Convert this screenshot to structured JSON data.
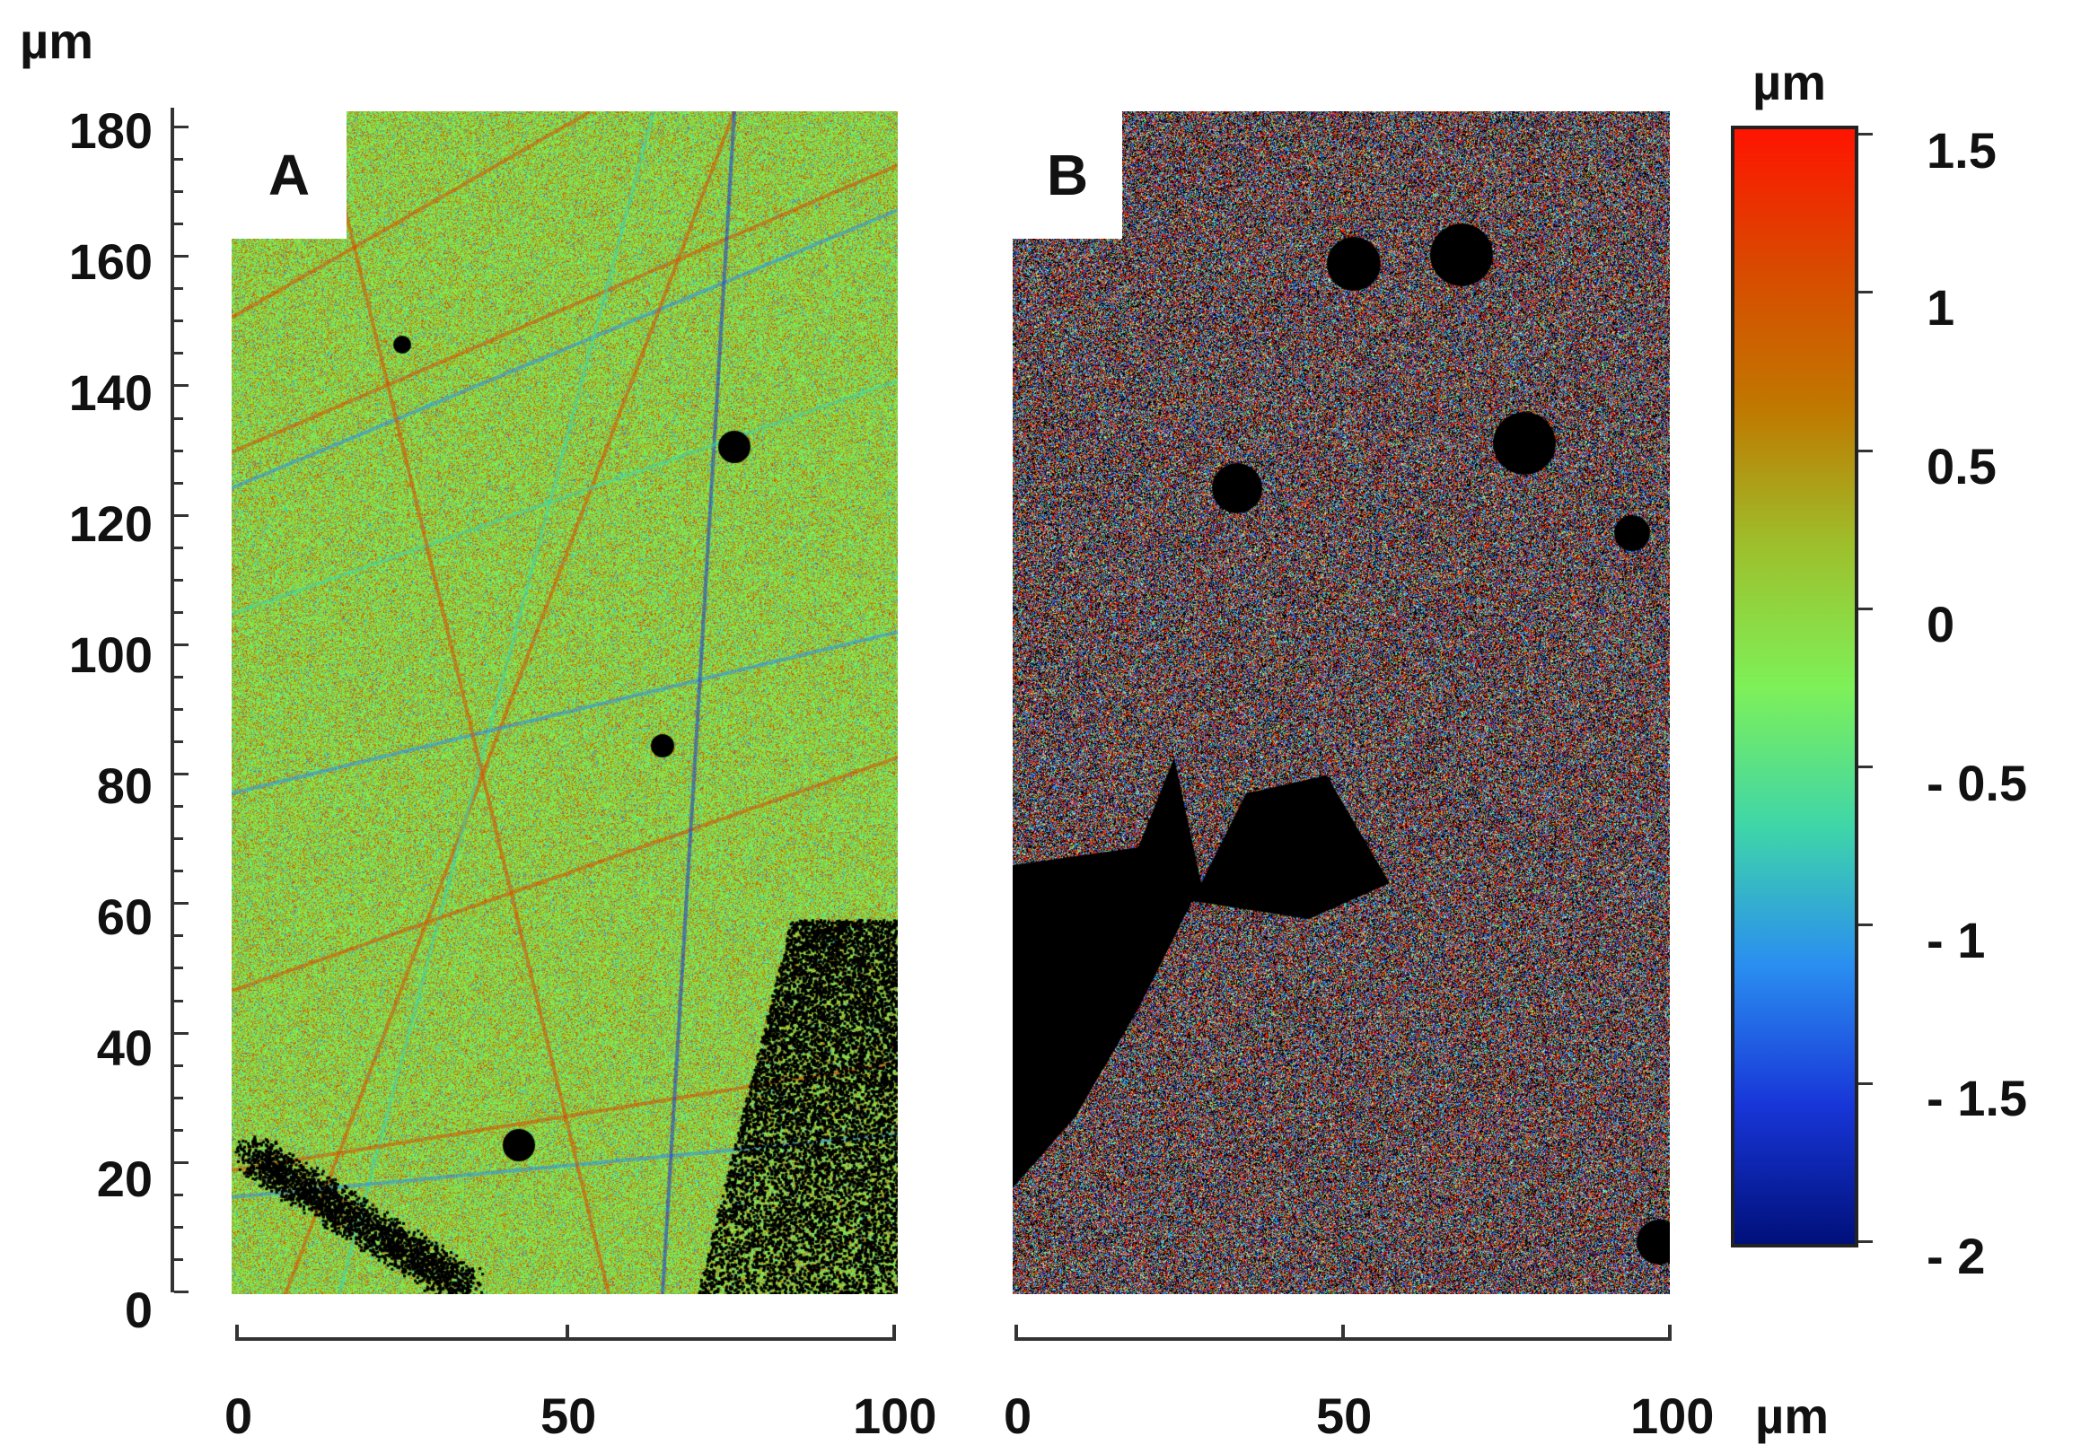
{
  "figure": {
    "y_axis": {
      "unit": "µm",
      "ticks": [
        "180",
        "160",
        "140",
        "120",
        "100",
        "80",
        "60",
        "40",
        "20",
        "0"
      ]
    },
    "panel_a": {
      "tag": "A",
      "x_ticks": [
        "0",
        "50",
        "100"
      ]
    },
    "panel_b": {
      "tag": "B",
      "x_ticks": [
        "0",
        "50",
        "100"
      ],
      "x_unit": "µm"
    },
    "colorbar": {
      "unit": "µm",
      "ticks": [
        "1.5",
        "1",
        "0.5",
        "0",
        "- 0.5",
        "- 1",
        "- 1.5",
        "- 2"
      ],
      "colors": [
        "#ff1400",
        "#d94a00",
        "#c07800",
        "#9dc02c",
        "#7ef058",
        "#3fd6a8",
        "#2a8ef0",
        "#1836d8",
        "#00107a"
      ]
    }
  }
}
